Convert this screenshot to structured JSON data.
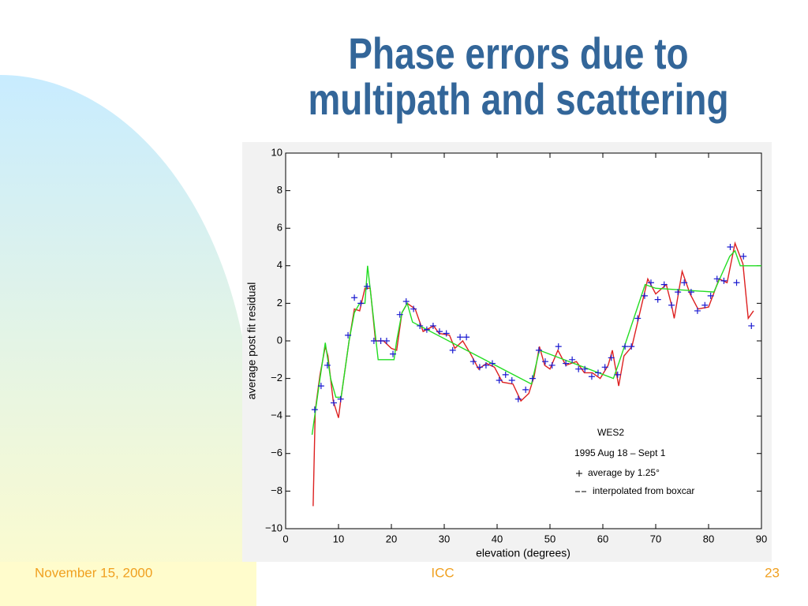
{
  "slide": {
    "title": [
      "Phase errors due to",
      "multipath and scattering"
    ],
    "footer": {
      "date": "November 15, 2000",
      "center": "ICC",
      "page": "23"
    }
  },
  "chart_data": {
    "type": "line",
    "xlabel": "elevation (degrees)",
    "ylabel": "average post fit residual",
    "annotations": [
      "WES2",
      "1995 Aug 18 – Sept 1"
    ],
    "xlim": [
      0,
      90
    ],
    "xticks": [
      0,
      10,
      20,
      30,
      40,
      50,
      60,
      70,
      80,
      90
    ],
    "ylim": [
      -10,
      10
    ],
    "yticks": [
      {
        "value": -10,
        "label": "−10"
      },
      {
        "value": -8,
        "label": "−8"
      },
      {
        "value": -6,
        "label": "−6"
      },
      {
        "value": -4,
        "label": "−4"
      },
      {
        "value": -2,
        "label": "−2"
      },
      0,
      2,
      4,
      6,
      8,
      10
    ],
    "series": [
      {
        "name": "average by 1.25°",
        "color": "#1a1ad0",
        "marker": "+",
        "x": [
          5.5,
          6.7,
          7.9,
          9.1,
          10.4,
          11.8,
          13,
          14.2,
          15.4,
          16.7,
          18,
          19.1,
          20.3,
          21.6,
          22.8,
          24.2,
          25.4,
          26.7,
          27.9,
          29.1,
          30.4,
          31.6,
          33,
          34.2,
          35.5,
          36.7,
          37.9,
          39.1,
          40.4,
          41.6,
          42.8,
          44,
          45.4,
          46.7,
          47.9,
          49.1,
          50.4,
          51.6,
          53,
          54.2,
          55.4,
          56.6,
          57.9,
          59.1,
          60.4,
          61.6,
          62.8,
          64.2,
          65.4,
          66.6,
          67.9,
          69.1,
          70.4,
          71.6,
          73,
          74.2,
          75.4,
          76.7,
          77.9,
          79.3,
          80.4,
          81.6,
          82.9,
          84.1,
          85.3,
          86.6,
          88.1
        ],
        "values": [
          -3.66,
          -2.4,
          -1.3,
          -3.3,
          -3.1,
          0.3,
          2.3,
          2.0,
          2.9,
          0,
          0,
          0,
          -0.7,
          1.4,
          2.1,
          1.7,
          0.8,
          0.6,
          0.8,
          0.5,
          0.4,
          -0.5,
          0.2,
          0.2,
          -1.1,
          -1.4,
          -1.3,
          -1.2,
          -2.1,
          -1.8,
          -2.1,
          -3.1,
          -2.6,
          -2.0,
          -0.5,
          -1.1,
          -1.3,
          -0.3,
          -1.2,
          -1.0,
          -1.5,
          -1.5,
          -1.9,
          -1.7,
          -1.4,
          -0.9,
          -1.8,
          -0.3,
          -0.3,
          1.2,
          2.4,
          3.1,
          2.2,
          3.0,
          1.9,
          2.6,
          3.1,
          2.6,
          1.6,
          1.9,
          2.4,
          3.3,
          3.2,
          5.0,
          3.1,
          4.5,
          0.8
        ]
      },
      {
        "name": "interpolated from boxcar",
        "color": "#dd2020",
        "marker": "none",
        "x": [
          5.2,
          5.6,
          6.5,
          7.5,
          8,
          9,
          10,
          10.5,
          12,
          13,
          14,
          15,
          16,
          17,
          18.5,
          20,
          21,
          22,
          23,
          24.5,
          26,
          28,
          29,
          31,
          32,
          33.5,
          35,
          36.5,
          38,
          39.5,
          41,
          43,
          44.5,
          46,
          47,
          48,
          49,
          50,
          51.5,
          53,
          55,
          56.5,
          58,
          59.5,
          61,
          61.8,
          63,
          64,
          65.5,
          67,
          68.5,
          70,
          72,
          73,
          73.5,
          75,
          76.5,
          78,
          80,
          82,
          83.5,
          85,
          86.5,
          87.5,
          88,
          88.5
        ],
        "values": [
          -8.8,
          -3.7,
          -1.8,
          -0.3,
          -0.8,
          -3.2,
          -4.1,
          -3,
          0,
          1.7,
          1.6,
          2.8,
          2.8,
          0,
          0,
          -0.4,
          -0.5,
          1.5,
          2.0,
          1.7,
          0.5,
          0.8,
          0.4,
          0.3,
          -0.4,
          0,
          -0.7,
          -1.5,
          -1.2,
          -1.4,
          -2.2,
          -2.3,
          -3.2,
          -2.8,
          -1.9,
          -0.3,
          -1.3,
          -1.5,
          -0.5,
          -1.3,
          -1.1,
          -1.7,
          -1.7,
          -2.0,
          -1.3,
          -0.5,
          -2.4,
          -0.8,
          -0.3,
          1.5,
          3.3,
          2.5,
          3.0,
          1.9,
          1.2,
          3.7,
          2.5,
          1.7,
          1.8,
          3.3,
          3.1,
          5.2,
          4.1,
          1.2,
          1.4,
          1.6
        ]
      },
      {
        "color": "#22dd22",
        "marker": "none",
        "x": [
          5,
          6.5,
          7.5,
          8.5,
          9.5,
          10.5,
          12,
          13,
          14,
          15,
          15.5,
          16.5,
          17.5,
          20.5,
          21,
          22,
          23,
          24,
          46.5,
          48,
          62,
          63,
          68,
          70,
          81,
          84,
          85,
          86,
          90
        ],
        "values": [
          -5,
          -2,
          -0.1,
          -2,
          -3,
          -3,
          0,
          1.5,
          2,
          2,
          4,
          1.5,
          -1,
          -1,
          0,
          1.5,
          2,
          1,
          -2.3,
          -0.5,
          -2,
          -1.2,
          3,
          2.8,
          2.6,
          4.5,
          4.8,
          4,
          4
        ]
      }
    ]
  }
}
